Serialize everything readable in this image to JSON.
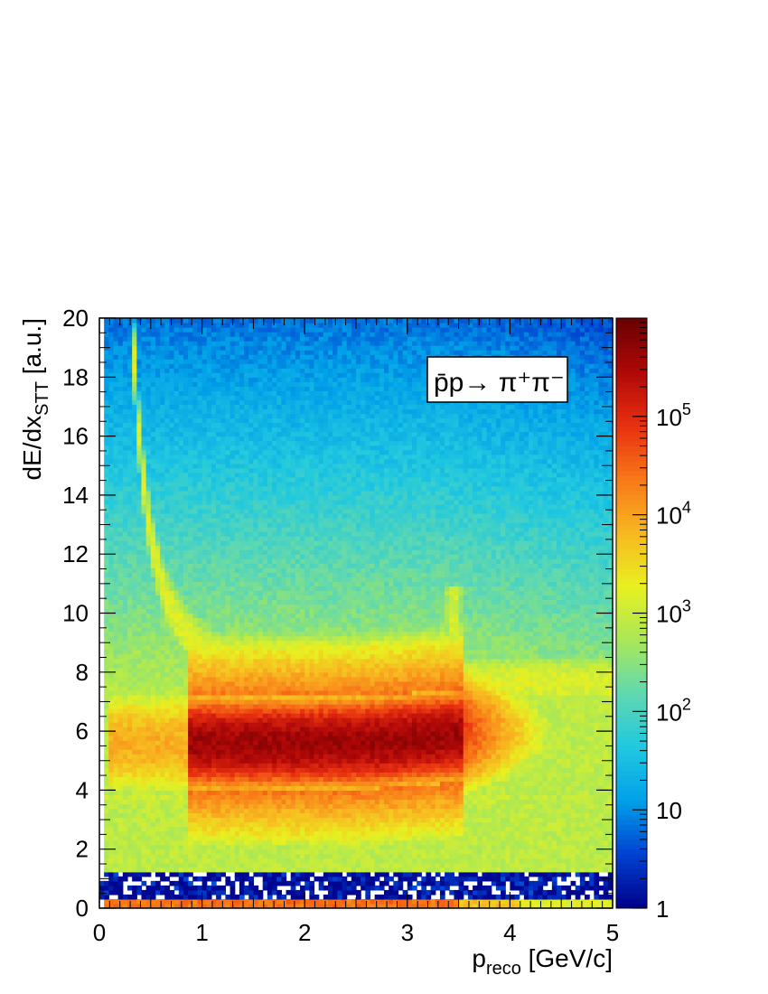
{
  "chart_data": {
    "type": "heatmap",
    "title": "",
    "xlabel": {
      "base": "p",
      "sub": "reco",
      "unit": " [GeV/c]"
    },
    "ylabel": {
      "base": "dE/dx",
      "sub": "STT",
      "unit": " [a.u.]"
    },
    "xlim": [
      0,
      5
    ],
    "ylim": [
      0,
      20
    ],
    "x_ticks": [
      0,
      1,
      2,
      3,
      4,
      5
    ],
    "y_ticks": [
      0,
      2,
      4,
      6,
      8,
      10,
      12,
      14,
      16,
      18,
      20
    ],
    "z_scale": "log",
    "zlim": [
      1,
      1000000
    ],
    "colorbar_ticks": [
      {
        "value": 1,
        "label": "1"
      },
      {
        "value": 10,
        "label": "10"
      },
      {
        "value": 100,
        "label": "10",
        "exp": "2"
      },
      {
        "value": 1000,
        "label": "10",
        "exp": "3"
      },
      {
        "value": 10000,
        "label": "10",
        "exp": "4"
      },
      {
        "value": 100000,
        "label": "10",
        "exp": "5"
      }
    ],
    "colormap": [
      "#00008a",
      "#0040d0",
      "#00a0e8",
      "#20c8e0",
      "#60d8b0",
      "#a8e858",
      "#e8f020",
      "#f8b820",
      "#f87818",
      "#e83010",
      "#b00808",
      "#6a0000"
    ],
    "legend": {
      "text": "p̄p→ π⁺π⁻",
      "placement": "top-right"
    },
    "features": [
      {
        "name": "pion band",
        "x_range": [
          0.85,
          3.5
        ],
        "y_center": 5.6,
        "y_width": 1.8,
        "peak_counts": 500000
      },
      {
        "name": "low-momentum pion rise",
        "x_range": [
          0.1,
          0.85
        ],
        "y_center": 5.6,
        "peak_counts": 10000
      },
      {
        "name": "proton-like curve",
        "shape": "1/p^2",
        "x_range": [
          0.4,
          1.0
        ],
        "y_range": [
          8,
          20
        ],
        "peak_counts": 1000
      },
      {
        "name": "bump near maximum momentum",
        "x": 3.45,
        "y_range": [
          2,
          11
        ]
      },
      {
        "name": "zero bin row",
        "y": 0.1,
        "peak_counts": 30000
      }
    ]
  }
}
